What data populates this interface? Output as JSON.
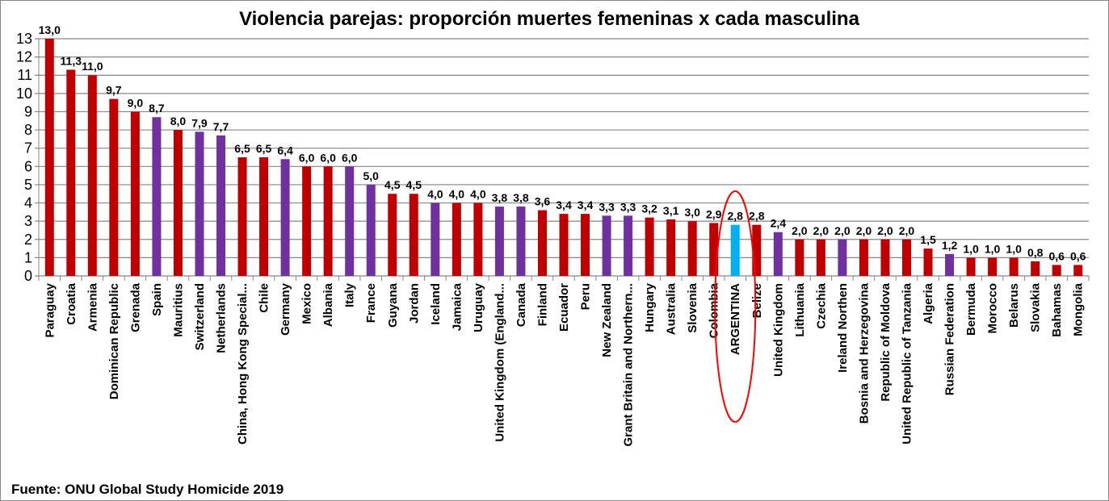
{
  "chart_data": {
    "type": "bar",
    "title": "Violencia parejas: proporción muertes femeninas x  cada masculina",
    "xlabel": "",
    "ylabel": "",
    "ylim": [
      0,
      13
    ],
    "yticks": [
      "0",
      "1",
      "2",
      "3",
      "4",
      "5",
      "6",
      "7",
      "8",
      "9",
      "10",
      "11",
      "12",
      "13"
    ],
    "grid": true,
    "categories": [
      "Paraguay",
      "Croatia",
      "Armenia",
      "Dominican Republic",
      "Grenada",
      "Spain",
      "Mauritius",
      "Switzerland",
      "Netherlands",
      "China, Hong Kong Special...",
      "Chile",
      "Germany",
      "Mexico",
      "Albania",
      "Italy",
      "France",
      "Guyana",
      "Jordan",
      "Iceland",
      "Jamaica",
      "Uruguay",
      "United Kingdom (England...",
      "Canada",
      "Finland",
      "Ecuador",
      "Peru",
      "New Zealand",
      "Grant Britain and Northern...",
      "Hungary",
      "Australia",
      "Slovenia",
      "Colombia",
      "ARGENTINA",
      "Belize",
      "United Kingdom",
      "Lithuania",
      "Czechia",
      "Ireland Northen",
      "Bosnia and Herzegovina",
      "Republic of Moldova",
      "United Republic of Tanzania",
      "Algeria",
      "Russian Federation",
      "Bermuda",
      "Morocco",
      "Belarus",
      "Slovakia",
      "Bahamas",
      "Mongolia"
    ],
    "values": [
      13.0,
      11.3,
      11.0,
      9.7,
      9.0,
      8.7,
      8.0,
      7.9,
      7.7,
      6.5,
      6.5,
      6.4,
      6.0,
      6.0,
      6.0,
      5.0,
      4.5,
      4.5,
      4.0,
      4.0,
      4.0,
      3.8,
      3.8,
      3.6,
      3.4,
      3.4,
      3.3,
      3.3,
      3.2,
      3.1,
      3.0,
      2.9,
      2.8,
      2.8,
      2.4,
      2.0,
      2.0,
      2.0,
      2.0,
      2.0,
      2.0,
      1.5,
      1.2,
      1.0,
      1.0,
      1.0,
      0.8,
      0.6,
      0.6
    ],
    "data_labels": [
      "13,0",
      "11,3",
      "11,0",
      "9,7",
      "9,0",
      "8,7",
      "8,0",
      "7,9",
      "7,7",
      "6,5",
      "6,5",
      "6,4",
      "6,0",
      "6,0",
      "6,0",
      "5,0",
      "4,5",
      "4,5",
      "4,0",
      "4,0",
      "4,0",
      "3,8",
      "3,8",
      "3,6",
      "3,4",
      "3,4",
      "3,3",
      "3,3",
      "3,2",
      "3,1",
      "3,0",
      "2,9",
      "2,8",
      "2,8",
      "2,4",
      "2,0",
      "2,0",
      "2,0",
      "2,0",
      "2,0",
      "2,0",
      "1,5",
      "1,2",
      "1,0",
      "1,0",
      "1,0",
      "0,8",
      "0,6",
      "0,6"
    ],
    "bar_colors": [
      "r",
      "r",
      "r",
      "r",
      "r",
      "p",
      "r",
      "p",
      "p",
      "r",
      "r",
      "p",
      "r",
      "r",
      "p",
      "p",
      "r",
      "r",
      "p",
      "r",
      "r",
      "p",
      "p",
      "r",
      "r",
      "r",
      "p",
      "p",
      "r",
      "r",
      "r",
      "r",
      "b",
      "r",
      "p",
      "r",
      "r",
      "p",
      "r",
      "r",
      "r",
      "r",
      "p",
      "r",
      "r",
      "r",
      "r",
      "r",
      "r"
    ],
    "palette": {
      "r": "#c00000",
      "p": "#7030a0",
      "b": "#00b0f0"
    },
    "highlight": {
      "category": "ARGENTINA",
      "shape": "ellipse",
      "color": "#ff0000"
    },
    "source": "Fuente: ONU Global Study Homicide 2019"
  }
}
